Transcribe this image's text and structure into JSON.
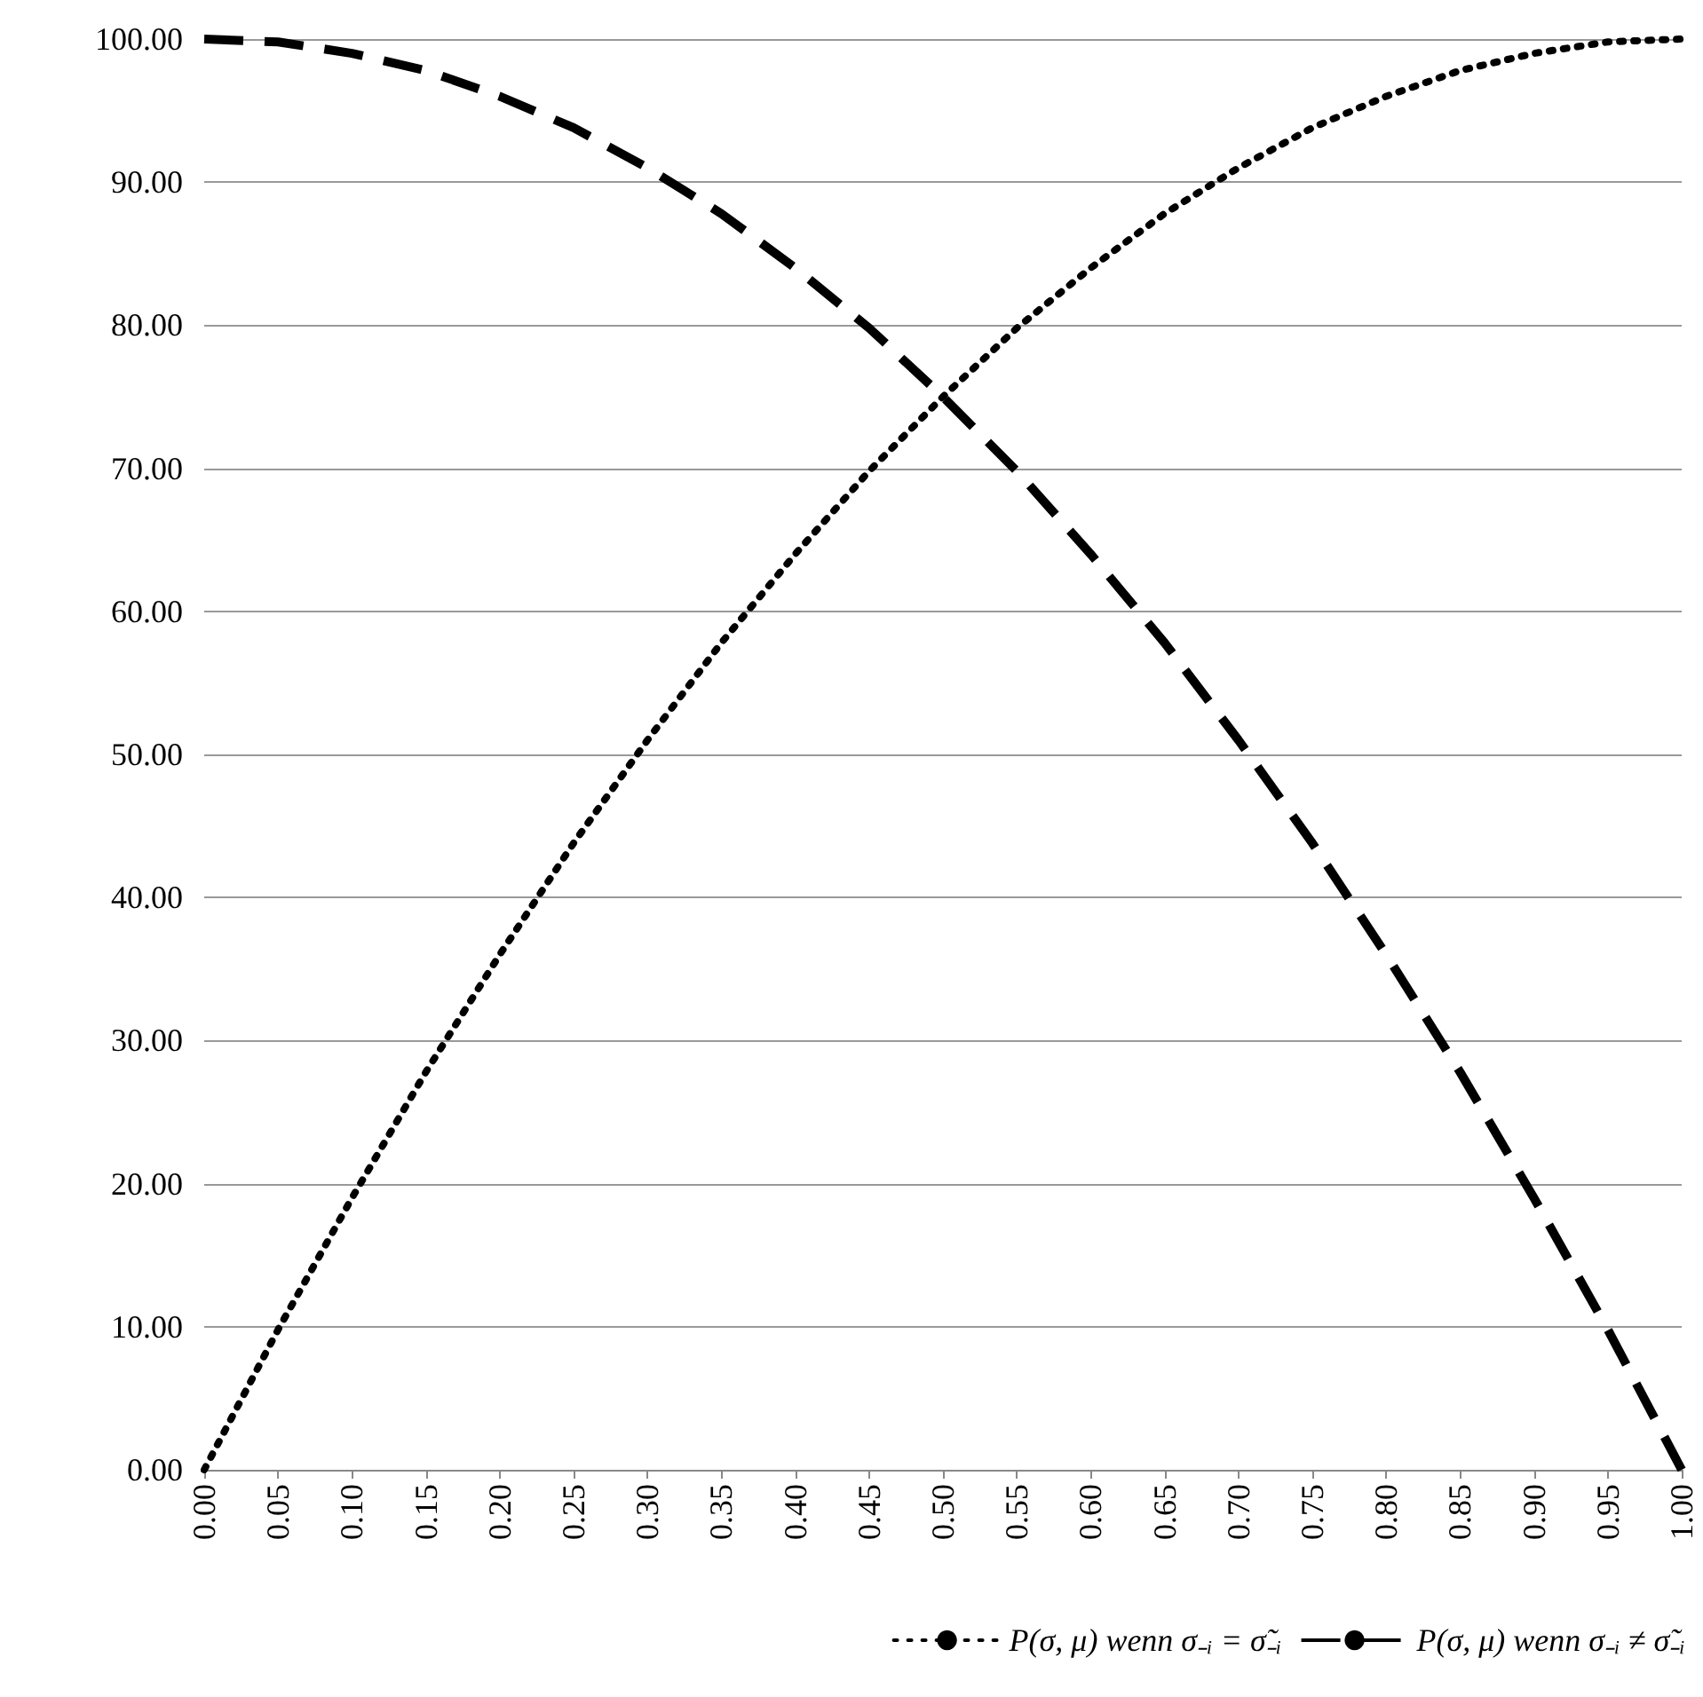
{
  "chart_data": {
    "type": "line",
    "categories": [
      "0.00",
      "0.05",
      "0.10",
      "0.15",
      "0.20",
      "0.25",
      "0.30",
      "0.35",
      "0.40",
      "0.45",
      "0.50",
      "0.55",
      "0.60",
      "0.65",
      "0.70",
      "0.75",
      "0.80",
      "0.85",
      "0.90",
      "0.95",
      "1.00"
    ],
    "series": [
      {
        "name": "P(σ, μ) wenn σ₋ᵢ = σ̃₋ᵢ",
        "color": "#000000",
        "line_style": "dotted",
        "values": [
          0,
          9.8,
          19,
          27.8,
          36,
          43.8,
          51,
          57.8,
          64,
          69.8,
          75,
          79.8,
          84,
          87.8,
          91,
          93.8,
          96,
          97.8,
          99,
          99.8,
          100
        ]
      },
      {
        "name": "P(σ, μ) wenn σ₋ᵢ ≠ σ̃₋ᵢ",
        "color": "#000000",
        "line_style": "dashed",
        "values": [
          100,
          99.8,
          99,
          97.8,
          96,
          93.8,
          91,
          87.8,
          84,
          79.8,
          75,
          69.8,
          64,
          57.8,
          51,
          43.8,
          36,
          27.8,
          19,
          9.8,
          0
        ]
      }
    ],
    "ylim": [
      0,
      100
    ],
    "yticks": [
      {
        "value": 0,
        "label": "0.00"
      },
      {
        "value": 10,
        "label": "10.00"
      },
      {
        "value": 20,
        "label": "20.00"
      },
      {
        "value": 30,
        "label": "30.00"
      },
      {
        "value": 40,
        "label": "40.00"
      },
      {
        "value": 50,
        "label": "50.00"
      },
      {
        "value": 60,
        "label": "60.00"
      },
      {
        "value": 70,
        "label": "70.00"
      },
      {
        "value": 80,
        "label": "80.00"
      },
      {
        "value": 90,
        "label": "90.00"
      },
      {
        "value": 100,
        "label": "100.00"
      }
    ],
    "grid": "y",
    "legend": "bottom right",
    "marker": "none"
  }
}
